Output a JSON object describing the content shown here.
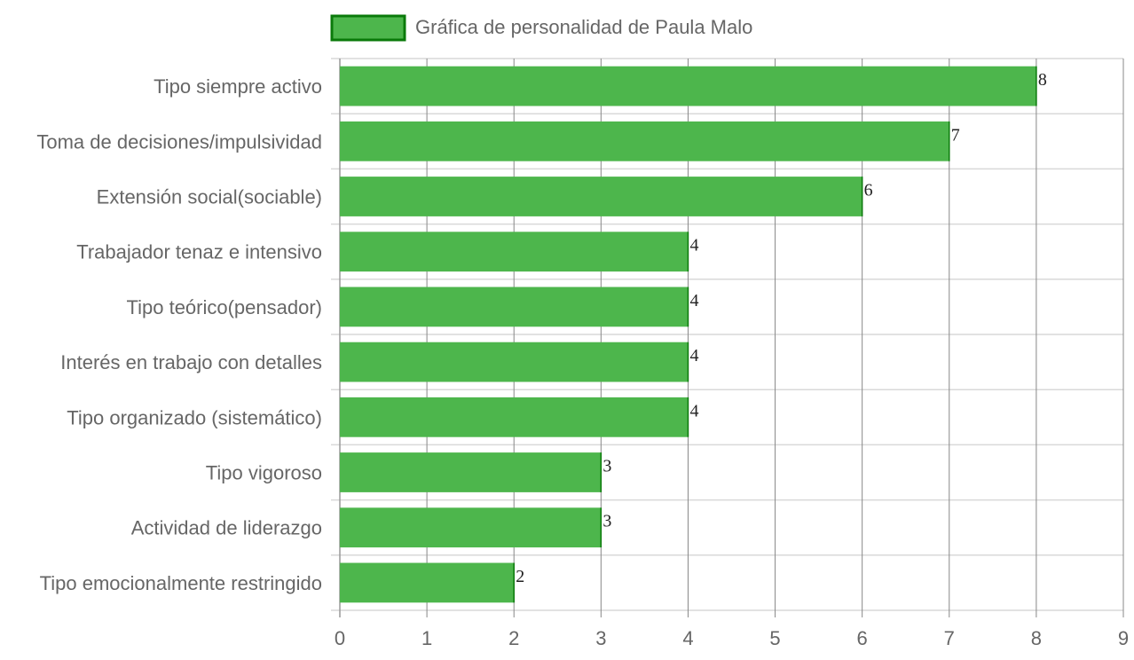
{
  "chart_data": {
    "type": "bar",
    "orientation": "horizontal",
    "title": "",
    "xlabel": "",
    "ylabel": "",
    "categories": [
      "Tipo siempre activo",
      "Toma de decisiones/impulsividad",
      "Extensión social(sociable)",
      "Trabajador tenaz e intensivo",
      "Tipo teórico(pensador)",
      "Interés en trabajo con detalles",
      "Tipo organizado (sistemático)",
      "Tipo vigoroso",
      "Actividad de liderazgo",
      "Tipo emocionalmente restringido"
    ],
    "series": [
      {
        "name": "Gráfica de personalidad de Paula Malo",
        "values": [
          8,
          7,
          6,
          4,
          4,
          4,
          4,
          3,
          3,
          2
        ]
      }
    ],
    "xlim": [
      0,
      9
    ],
    "ticks": [
      "0",
      "1",
      "2",
      "3",
      "4",
      "5",
      "6",
      "7",
      "8",
      "9"
    ],
    "grid": true,
    "legend_position": "top",
    "data_labels": true,
    "colors": {
      "bar_fill": "#4db64c",
      "bar_border": "#0a7a0a",
      "grid": "#d9d9d9",
      "vgrid": "#888888"
    }
  }
}
